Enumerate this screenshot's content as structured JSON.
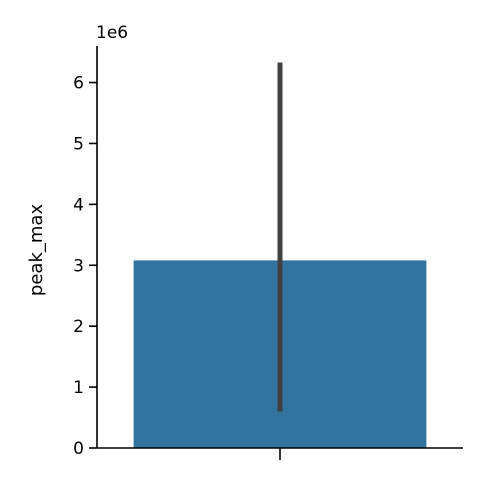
{
  "chart_data": {
    "type": "bar",
    "categories": [
      ""
    ],
    "values": [
      3.08
    ],
    "error_low": [
      0.6
    ],
    "error_high": [
      6.33
    ],
    "ylabel": "peak_max",
    "xlabel": "",
    "y_offset_label": "1e6",
    "y_ticks": [
      0,
      1,
      2,
      3,
      4,
      5,
      6
    ],
    "y_tick_labels": [
      "0",
      "1",
      "2",
      "3",
      "4",
      "5",
      "6"
    ],
    "ylim": [
      0,
      6.6
    ],
    "grid": false,
    "colors": {
      "bar": "#3274a1",
      "error_bar": "#404040"
    }
  }
}
